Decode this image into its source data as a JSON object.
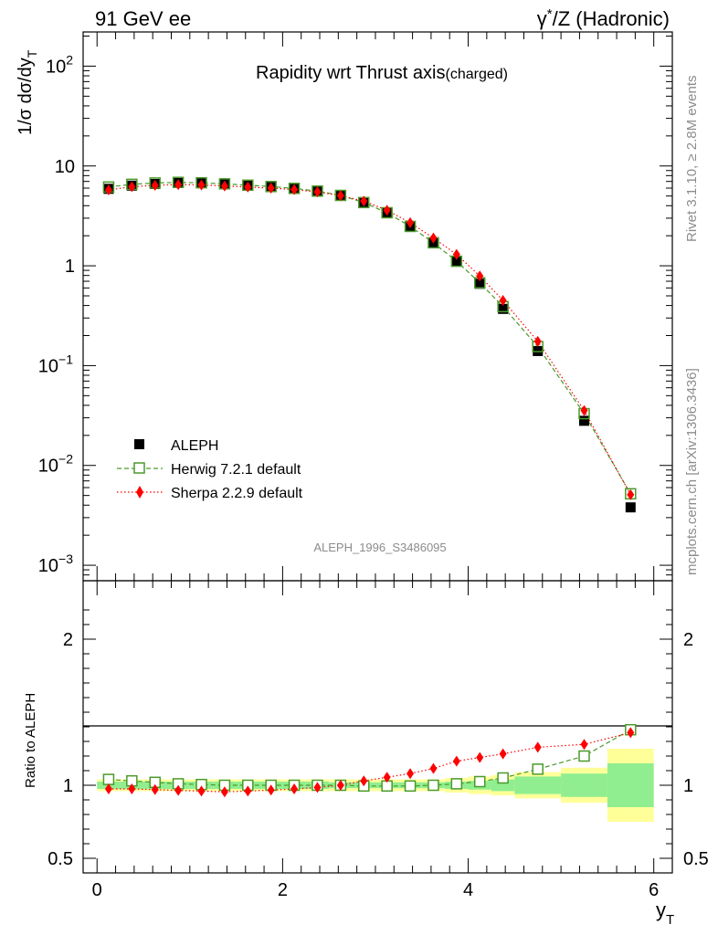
{
  "header": {
    "left": "91 GeV ee",
    "right_prefix": "γ",
    "right_sup": "*",
    "right_suffix": "/Z (Hadronic)"
  },
  "side_text": {
    "rivet": "Rivet 3.1.10, ≥ 2.8M events",
    "mcplots": "mcplots.cern.ch [arXiv:1306.3436]"
  },
  "chart_data": {
    "type": "scatter",
    "title": "Rapidity wrt Thrust axis",
    "title_suffix": "(charged)",
    "analysis_id": "ALEPH_1996_S3486095",
    "ylabel": "1/σ dσ/dy",
    "ylabel_sub": "T",
    "xlabel": "y",
    "xlabel_sub": "T",
    "xlim": [
      -0.15,
      6.2
    ],
    "ylim_log": [
      0.0007,
      220
    ],
    "x_ticks": [
      "0",
      "2",
      "4",
      "6"
    ],
    "y_ticks": [
      {
        "base": "10",
        "exp": "2"
      },
      {
        "base": "10",
        "exp": ""
      },
      {
        "base": "1",
        "exp": ""
      },
      {
        "base": "10",
        "exp": "−1"
      },
      {
        "base": "10",
        "exp": "−2"
      },
      {
        "base": "10",
        "exp": "−3"
      }
    ],
    "x": [
      0.125,
      0.375,
      0.625,
      0.875,
      1.125,
      1.375,
      1.625,
      1.875,
      2.125,
      2.375,
      2.625,
      2.875,
      3.125,
      3.375,
      3.625,
      3.875,
      4.125,
      4.375,
      4.75,
      5.25,
      5.75
    ],
    "x_edges": [
      0,
      0.25,
      0.5,
      0.75,
      1.0,
      1.25,
      1.5,
      1.75,
      2.0,
      2.25,
      2.5,
      2.75,
      3.0,
      3.25,
      3.5,
      3.75,
      4.0,
      4.25,
      4.5,
      5.0,
      5.5,
      6.0
    ],
    "series": [
      {
        "name": "ALEPH",
        "marker": "filled-square",
        "color": "#000000",
        "values": [
          5.9,
          6.35,
          6.6,
          6.75,
          6.72,
          6.6,
          6.4,
          6.2,
          5.95,
          5.6,
          5.05,
          4.32,
          3.42,
          2.5,
          1.7,
          1.1,
          0.66,
          0.37,
          0.14,
          0.028,
          0.0038
        ]
      },
      {
        "name": "Herwig 7.2.1 default",
        "marker": "open-square",
        "color": "#4a9a2a",
        "line": "dashed",
        "values": [
          6.15,
          6.55,
          6.75,
          6.85,
          6.78,
          6.62,
          6.42,
          6.22,
          5.96,
          5.6,
          5.07,
          4.3,
          3.4,
          2.48,
          1.7,
          1.11,
          0.675,
          0.39,
          0.155,
          0.033,
          0.0052
        ]
      },
      {
        "name": "Sherpa 2.2.9 default",
        "marker": "filled-diamond",
        "color": "#ff0000",
        "line": "dotted",
        "values": [
          5.75,
          6.2,
          6.4,
          6.5,
          6.45,
          6.3,
          6.15,
          6.0,
          5.8,
          5.5,
          5.05,
          4.45,
          3.6,
          2.7,
          1.9,
          1.3,
          0.79,
          0.45,
          0.175,
          0.0355,
          0.0051
        ]
      }
    ],
    "ratio": {
      "ylabel": "Ratio to ALEPH",
      "ylim": [
        0.4,
        2.4
      ],
      "y_ticks": [
        "0.5",
        "1",
        "2"
      ],
      "herwig": [
        1.04,
        1.03,
        1.02,
        1.01,
        1.005,
        1.0,
        1.0,
        1.0,
        1.0,
        1.0,
        1.0,
        0.995,
        0.995,
        0.995,
        1.0,
        1.01,
        1.025,
        1.05,
        1.11,
        1.2,
        1.38
      ],
      "sherpa": [
        0.975,
        0.975,
        0.97,
        0.965,
        0.96,
        0.955,
        0.96,
        0.967,
        0.975,
        0.985,
        1.0,
        1.03,
        1.055,
        1.08,
        1.115,
        1.165,
        1.19,
        1.215,
        1.26,
        1.28,
        1.36
      ],
      "band_inner": [
        0.025,
        0.025,
        0.025,
        0.025,
        0.025,
        0.025,
        0.025,
        0.025,
        0.025,
        0.025,
        0.02,
        0.02,
        0.02,
        0.02,
        0.02,
        0.025,
        0.03,
        0.04,
        0.06,
        0.08,
        0.15
      ],
      "band_outer": [
        0.04,
        0.04,
        0.04,
        0.04,
        0.04,
        0.04,
        0.04,
        0.04,
        0.04,
        0.04,
        0.04,
        0.04,
        0.04,
        0.04,
        0.04,
        0.05,
        0.06,
        0.07,
        0.09,
        0.12,
        0.25
      ],
      "inner_color": "#90ee90",
      "outer_color": "#ffff99"
    },
    "legend_position": "lower-left"
  }
}
